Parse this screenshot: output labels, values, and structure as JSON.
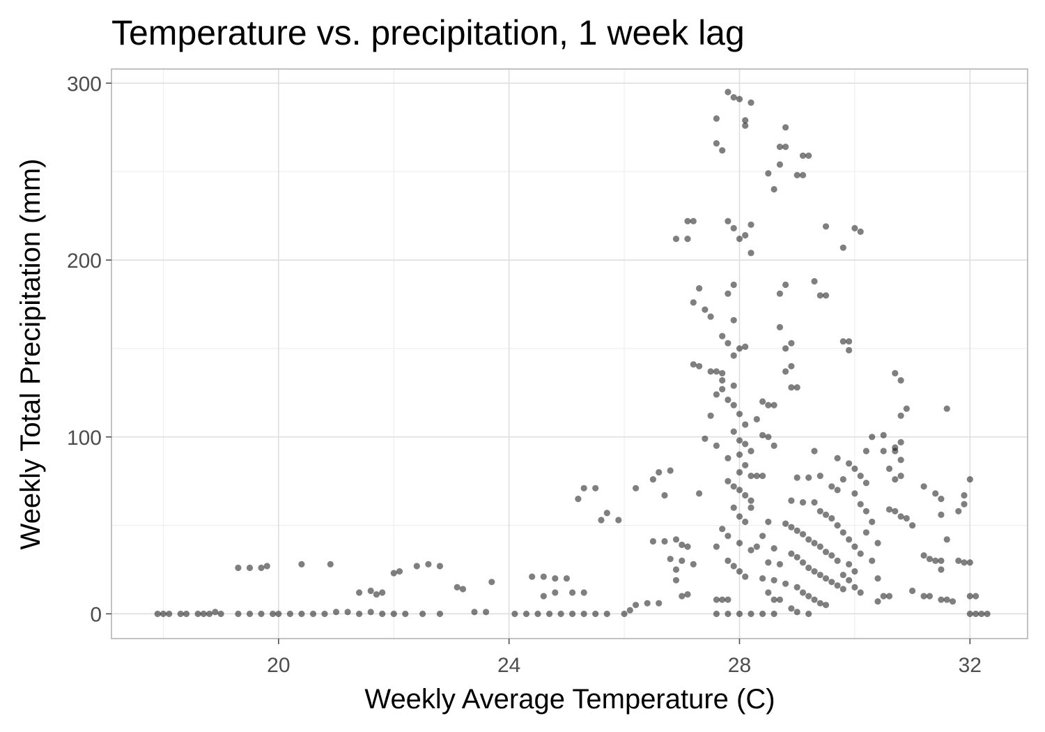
{
  "chart_data": {
    "type": "scatter",
    "title": "Temperature vs. precipitation, 1 week lag",
    "xlabel": "Weekly Average Temperature (C)",
    "ylabel": "Weekly Total Precipitation (mm)",
    "xlim": [
      17.1,
      33.0
    ],
    "ylim": [
      -14,
      308
    ],
    "xticks": [
      20,
      24,
      28,
      32
    ],
    "yticks": [
      0,
      100,
      200,
      300
    ],
    "x_tick_labels": [
      "20",
      "24",
      "28",
      "32"
    ],
    "y_tick_labels": [
      "0",
      "100",
      "200",
      "300"
    ],
    "grid": true,
    "legend": "none",
    "point_color": "#000000",
    "point_alpha": 0.5,
    "points": [
      [
        17.9,
        0
      ],
      [
        18.0,
        0
      ],
      [
        18.1,
        0
      ],
      [
        18.3,
        0
      ],
      [
        18.4,
        0
      ],
      [
        18.6,
        0
      ],
      [
        18.7,
        0
      ],
      [
        18.8,
        0
      ],
      [
        18.9,
        1
      ],
      [
        19.0,
        0
      ],
      [
        19.3,
        0
      ],
      [
        19.5,
        0
      ],
      [
        19.7,
        0
      ],
      [
        19.9,
        0
      ],
      [
        20.0,
        0
      ],
      [
        20.2,
        0
      ],
      [
        20.4,
        0
      ],
      [
        20.6,
        0
      ],
      [
        20.8,
        0
      ],
      [
        21.0,
        1
      ],
      [
        21.2,
        1
      ],
      [
        21.4,
        0
      ],
      [
        21.6,
        1
      ],
      [
        21.8,
        0
      ],
      [
        22.0,
        0
      ],
      [
        22.2,
        0
      ],
      [
        22.5,
        0
      ],
      [
        22.8,
        0
      ],
      [
        19.3,
        26
      ],
      [
        19.5,
        26
      ],
      [
        19.7,
        26
      ],
      [
        19.8,
        27
      ],
      [
        20.4,
        28
      ],
      [
        20.9,
        28
      ],
      [
        21.4,
        12
      ],
      [
        21.6,
        13
      ],
      [
        21.7,
        11
      ],
      [
        21.8,
        12
      ],
      [
        22.0,
        23
      ],
      [
        22.1,
        24
      ],
      [
        22.4,
        27
      ],
      [
        22.6,
        28
      ],
      [
        22.8,
        27
      ],
      [
        23.1,
        15
      ],
      [
        23.2,
        14
      ],
      [
        23.7,
        18
      ],
      [
        23.4,
        1
      ],
      [
        23.6,
        1
      ],
      [
        24.1,
        0
      ],
      [
        24.3,
        0
      ],
      [
        24.5,
        0
      ],
      [
        24.7,
        0
      ],
      [
        24.9,
        0
      ],
      [
        25.1,
        0
      ],
      [
        25.3,
        0
      ],
      [
        25.5,
        0
      ],
      [
        25.7,
        0
      ],
      [
        24.4,
        21
      ],
      [
        24.6,
        21
      ],
      [
        24.8,
        20
      ],
      [
        25.0,
        20
      ],
      [
        25.1,
        12
      ],
      [
        25.3,
        12
      ],
      [
        24.6,
        10
      ],
      [
        24.8,
        12
      ],
      [
        25.2,
        65
      ],
      [
        25.3,
        71
      ],
      [
        25.5,
        71
      ],
      [
        25.7,
        57
      ],
      [
        25.9,
        53
      ],
      [
        25.6,
        53
      ],
      [
        26.0,
        0
      ],
      [
        26.1,
        2
      ],
      [
        26.2,
        5
      ],
      [
        26.4,
        6
      ],
      [
        26.6,
        6
      ],
      [
        26.2,
        71
      ],
      [
        26.5,
        76
      ],
      [
        26.6,
        80
      ],
      [
        26.8,
        81
      ],
      [
        26.7,
        67
      ],
      [
        26.5,
        41
      ],
      [
        26.7,
        41
      ],
      [
        26.9,
        42
      ],
      [
        27.0,
        39
      ],
      [
        27.1,
        38
      ],
      [
        26.8,
        31
      ],
      [
        27.0,
        30
      ],
      [
        26.9,
        25
      ],
      [
        27.2,
        28
      ],
      [
        27.0,
        10
      ],
      [
        27.1,
        11
      ],
      [
        26.9,
        19
      ],
      [
        26.9,
        212
      ],
      [
        27.1,
        212
      ],
      [
        27.1,
        222
      ],
      [
        27.2,
        222
      ],
      [
        27.3,
        184
      ],
      [
        27.2,
        176
      ],
      [
        27.4,
        172
      ],
      [
        27.5,
        168
      ],
      [
        27.2,
        141
      ],
      [
        27.3,
        140
      ],
      [
        27.5,
        137
      ],
      [
        27.6,
        137
      ],
      [
        27.7,
        136
      ],
      [
        27.6,
        124
      ],
      [
        27.7,
        127
      ],
      [
        27.8,
        121
      ],
      [
        27.9,
        118
      ],
      [
        27.6,
        280
      ],
      [
        27.6,
        266
      ],
      [
        27.7,
        262
      ],
      [
        27.8,
        295
      ],
      [
        27.9,
        292
      ],
      [
        28.0,
        291
      ],
      [
        28.1,
        279
      ],
      [
        28.1,
        276
      ],
      [
        28.2,
        289
      ],
      [
        27.8,
        222
      ],
      [
        27.9,
        218
      ],
      [
        28.0,
        212
      ],
      [
        28.1,
        214
      ],
      [
        28.2,
        220
      ],
      [
        28.2,
        204
      ],
      [
        27.9,
        186
      ],
      [
        27.8,
        181
      ],
      [
        27.9,
        166
      ],
      [
        27.7,
        157
      ],
      [
        27.8,
        153
      ],
      [
        27.9,
        146
      ],
      [
        28.0,
        150
      ],
      [
        28.1,
        151
      ],
      [
        27.7,
        132
      ],
      [
        27.9,
        129
      ],
      [
        28.0,
        113
      ],
      [
        28.1,
        107
      ],
      [
        27.9,
        103
      ],
      [
        28.0,
        98
      ],
      [
        28.1,
        96
      ],
      [
        28.2,
        92
      ],
      [
        28.0,
        90
      ],
      [
        27.8,
        88
      ],
      [
        28.1,
        84
      ],
      [
        28.0,
        80
      ],
      [
        28.2,
        78
      ],
      [
        27.8,
        75
      ],
      [
        27.9,
        72
      ],
      [
        28.0,
        70
      ],
      [
        28.1,
        67
      ],
      [
        28.2,
        64
      ],
      [
        27.9,
        60
      ],
      [
        28.0,
        55
      ],
      [
        28.1,
        52
      ],
      [
        27.7,
        48
      ],
      [
        27.8,
        44
      ],
      [
        28.0,
        40
      ],
      [
        28.2,
        36
      ],
      [
        27.6,
        38
      ],
      [
        27.8,
        30
      ],
      [
        27.9,
        27
      ],
      [
        28.0,
        24
      ],
      [
        28.1,
        21
      ],
      [
        27.6,
        8
      ],
      [
        27.7,
        8
      ],
      [
        27.8,
        8
      ],
      [
        27.6,
        0
      ],
      [
        27.8,
        0
      ],
      [
        28.0,
        0
      ],
      [
        28.2,
        0
      ],
      [
        28.4,
        0
      ],
      [
        28.6,
        0
      ],
      [
        27.5,
        112
      ],
      [
        27.4,
        99
      ],
      [
        27.6,
        95
      ],
      [
        27.3,
        68
      ],
      [
        28.4,
        120
      ],
      [
        28.5,
        118
      ],
      [
        28.3,
        110
      ],
      [
        28.4,
        101
      ],
      [
        28.5,
        100
      ],
      [
        28.6,
        95
      ],
      [
        28.3,
        78
      ],
      [
        28.4,
        78
      ],
      [
        28.2,
        60
      ],
      [
        28.5,
        52
      ],
      [
        28.4,
        44
      ],
      [
        28.3,
        38
      ],
      [
        28.6,
        37
      ],
      [
        28.5,
        29
      ],
      [
        28.7,
        28
      ],
      [
        28.4,
        20
      ],
      [
        28.6,
        19
      ],
      [
        28.5,
        12
      ],
      [
        28.7,
        8
      ],
      [
        28.6,
        8
      ],
      [
        28.8,
        275
      ],
      [
        28.7,
        264
      ],
      [
        28.8,
        264
      ],
      [
        28.7,
        254
      ],
      [
        28.5,
        249
      ],
      [
        28.6,
        240
      ],
      [
        29.1,
        259
      ],
      [
        29.2,
        259
      ],
      [
        29.0,
        248
      ],
      [
        29.1,
        248
      ],
      [
        28.8,
        186
      ],
      [
        28.7,
        181
      ],
      [
        28.7,
        162
      ],
      [
        28.8,
        150
      ],
      [
        28.9,
        153
      ],
      [
        28.9,
        140
      ],
      [
        28.8,
        137
      ],
      [
        28.9,
        128
      ],
      [
        29.0,
        128
      ],
      [
        28.6,
        118
      ],
      [
        29.3,
        188
      ],
      [
        29.4,
        180
      ],
      [
        29.5,
        180
      ],
      [
        29.8,
        154
      ],
      [
        29.9,
        154
      ],
      [
        29.9,
        149
      ],
      [
        29.8,
        207
      ],
      [
        30.0,
        218
      ],
      [
        30.1,
        216
      ],
      [
        29.5,
        219
      ],
      [
        29.0,
        77
      ],
      [
        29.2,
        77
      ],
      [
        28.9,
        64
      ],
      [
        29.1,
        63
      ],
      [
        29.3,
        63
      ],
      [
        29.4,
        78
      ],
      [
        29.3,
        92
      ],
      [
        29.6,
        72
      ],
      [
        29.7,
        70
      ],
      [
        29.8,
        76
      ],
      [
        28.8,
        51
      ],
      [
        28.9,
        49
      ],
      [
        29.0,
        47
      ],
      [
        29.1,
        45
      ],
      [
        29.2,
        42
      ],
      [
        29.3,
        40
      ],
      [
        29.4,
        38
      ],
      [
        29.5,
        35
      ],
      [
        29.6,
        33
      ],
      [
        29.7,
        30
      ],
      [
        28.9,
        34
      ],
      [
        29.0,
        32
      ],
      [
        29.1,
        29
      ],
      [
        29.2,
        26
      ],
      [
        29.3,
        24
      ],
      [
        29.4,
        22
      ],
      [
        29.5,
        20
      ],
      [
        29.6,
        18
      ],
      [
        29.7,
        16
      ],
      [
        29.8,
        14
      ],
      [
        28.8,
        17
      ],
      [
        29.0,
        15
      ],
      [
        29.1,
        12
      ],
      [
        29.2,
        10
      ],
      [
        29.3,
        8
      ],
      [
        29.4,
        6
      ],
      [
        29.5,
        5
      ],
      [
        28.9,
        3
      ],
      [
        29.0,
        1
      ],
      [
        29.2,
        0
      ],
      [
        29.4,
        58
      ],
      [
        29.5,
        56
      ],
      [
        29.6,
        54
      ],
      [
        29.7,
        50
      ],
      [
        29.8,
        46
      ],
      [
        29.9,
        42
      ],
      [
        30.0,
        38
      ],
      [
        30.1,
        34
      ],
      [
        29.9,
        28
      ],
      [
        30.0,
        24
      ],
      [
        29.8,
        22
      ],
      [
        29.9,
        19
      ],
      [
        30.0,
        15
      ],
      [
        30.1,
        12
      ],
      [
        29.7,
        88
      ],
      [
        29.9,
        85
      ],
      [
        30.0,
        82
      ],
      [
        30.1,
        78
      ],
      [
        30.2,
        74
      ],
      [
        30.0,
        68
      ],
      [
        30.1,
        62
      ],
      [
        30.2,
        58
      ],
      [
        30.3,
        52
      ],
      [
        30.2,
        46
      ],
      [
        30.4,
        40
      ],
      [
        30.3,
        30
      ],
      [
        30.4,
        20
      ],
      [
        30.2,
        92
      ],
      [
        30.3,
        100
      ],
      [
        30.5,
        101
      ],
      [
        30.5,
        92
      ],
      [
        30.6,
        82
      ],
      [
        30.7,
        94
      ],
      [
        30.8,
        97
      ],
      [
        30.7,
        92
      ],
      [
        30.8,
        87
      ],
      [
        30.7,
        76
      ],
      [
        30.8,
        78
      ],
      [
        30.9,
        116
      ],
      [
        30.8,
        112
      ],
      [
        30.7,
        136
      ],
      [
        30.8,
        132
      ],
      [
        30.6,
        59
      ],
      [
        30.7,
        58
      ],
      [
        30.8,
        55
      ],
      [
        30.9,
        54
      ],
      [
        31.0,
        50
      ],
      [
        30.5,
        10
      ],
      [
        30.6,
        10
      ],
      [
        30.4,
        7
      ],
      [
        31.0,
        13
      ],
      [
        31.2,
        33
      ],
      [
        31.3,
        31
      ],
      [
        31.4,
        30
      ],
      [
        31.5,
        30
      ],
      [
        31.2,
        10
      ],
      [
        31.3,
        10
      ],
      [
        31.5,
        8
      ],
      [
        31.6,
        8
      ],
      [
        31.7,
        7
      ],
      [
        31.2,
        72
      ],
      [
        31.4,
        68
      ],
      [
        31.5,
        65
      ],
      [
        31.5,
        56
      ],
      [
        31.6,
        116
      ],
      [
        31.6,
        42
      ],
      [
        31.8,
        58
      ],
      [
        31.9,
        62
      ],
      [
        31.9,
        67
      ],
      [
        32.0,
        76
      ],
      [
        31.8,
        30
      ],
      [
        31.9,
        29
      ],
      [
        32.0,
        29
      ],
      [
        32.0,
        10
      ],
      [
        32.1,
        10
      ],
      [
        32.0,
        0
      ],
      [
        32.1,
        0
      ],
      [
        32.2,
        0
      ],
      [
        32.3,
        0
      ],
      [
        31.5,
        25
      ]
    ]
  }
}
